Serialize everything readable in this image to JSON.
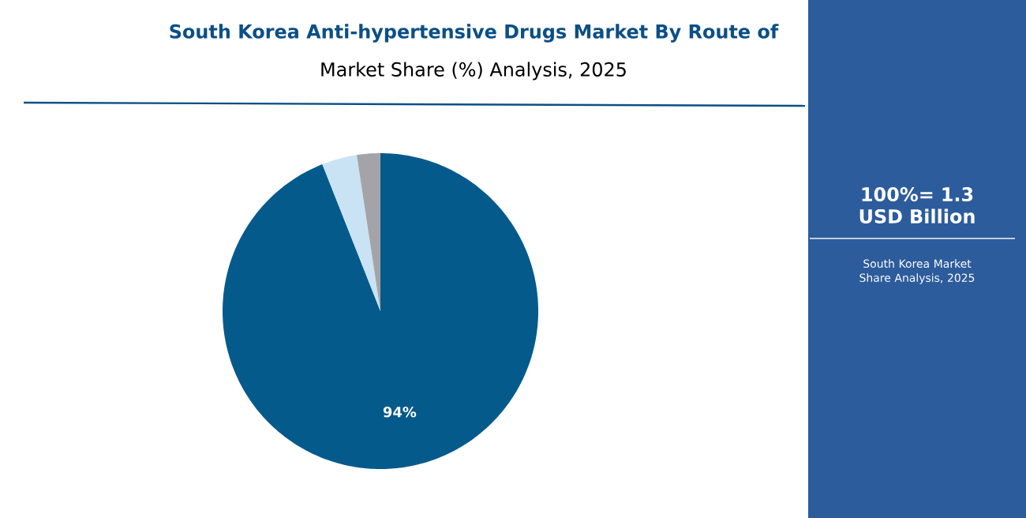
{
  "chart_data": {
    "type": "pie",
    "title": "South Korea Anti-hypertensive Drugs Market By Route of",
    "subtitle": "Market Share (%) Analysis, 2025",
    "categories": [
      null,
      null,
      null
    ],
    "values": [
      94,
      3.6,
      2.4
    ],
    "colors": [
      "#055a8c",
      "#c9e3f4",
      "#a4a4a8"
    ],
    "value_labels": [
      "94%",
      null,
      null
    ],
    "annotations": [
      "100%= 1.3 USD Billion",
      "South Korea Market Share Analysis, 2025"
    ]
  }
}
